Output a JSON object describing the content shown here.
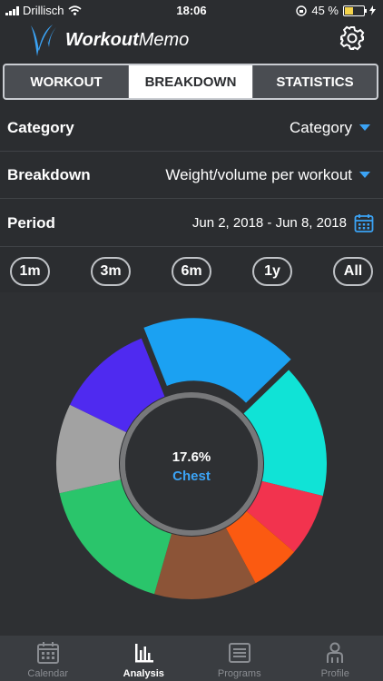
{
  "status": {
    "carrier": "Drillisch",
    "time": "18:06",
    "battery": "45 %",
    "battery_level": 0.45
  },
  "app": {
    "title_bold": "Workout",
    "title_light": "Memo"
  },
  "tabs": [
    {
      "label": "WORKOUT",
      "active": false
    },
    {
      "label": "BREAKDOWN",
      "active": true
    },
    {
      "label": "STATISTICS",
      "active": false
    }
  ],
  "filters": {
    "category": {
      "label": "Category",
      "value": "Category"
    },
    "breakdown": {
      "label": "Breakdown",
      "value": "Weight/volume per workout"
    },
    "period": {
      "label": "Period",
      "value": "Jun 2, 2018 - Jun 8, 2018"
    }
  },
  "period_buttons": [
    "1m",
    "3m",
    "6m",
    "1y",
    "All"
  ],
  "center": {
    "percent": "17.6%",
    "category": "Chest"
  },
  "chart_data": {
    "type": "pie",
    "donut": true,
    "selected": 0,
    "slices": [
      {
        "value": 17.6,
        "color": "#1ba1f2"
      },
      {
        "value": 15.0,
        "color": "#10e3d6"
      },
      {
        "value": 7.0,
        "color": "#f2334e"
      },
      {
        "value": 5.5,
        "color": "#fb5a11"
      },
      {
        "value": 11.5,
        "color": "#8c5437"
      },
      {
        "value": 16.0,
        "color": "#2ac56b"
      },
      {
        "value": 10.0,
        "color": "#a2a2a2"
      },
      {
        "value": 11.0,
        "color": "#4f2af0"
      }
    ]
  },
  "tabbar": [
    {
      "label": "Calendar",
      "icon": "calendar-icon",
      "active": false
    },
    {
      "label": "Analysis",
      "icon": "bar-chart-icon",
      "active": true
    },
    {
      "label": "Programs",
      "icon": "list-icon",
      "active": false
    },
    {
      "label": "Profile",
      "icon": "profile-icon",
      "active": false
    }
  ]
}
